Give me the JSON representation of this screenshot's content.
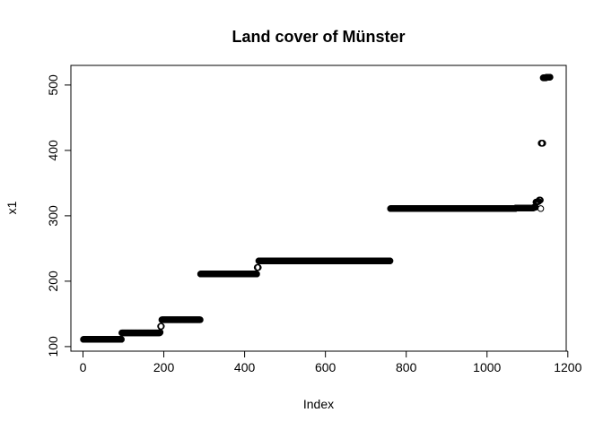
{
  "chart_data": {
    "type": "scatter",
    "title": "Land cover of Münster",
    "xlabel": "Index",
    "ylabel": "x1",
    "xlim": [
      -30,
      1196
    ],
    "ylim": [
      93,
      530
    ],
    "x_ticks": [
      0,
      200,
      400,
      600,
      800,
      1000,
      1200
    ],
    "y_ticks": [
      100,
      200,
      300,
      400,
      500
    ],
    "grid": false,
    "legend": "none",
    "point_color": "#000000",
    "segments": [
      {
        "value": 111,
        "x_from": 1,
        "x_to": 95
      },
      {
        "value": 121,
        "x_from": 96,
        "x_to": 190
      },
      {
        "value": 122,
        "x_from": 191,
        "x_to": 191
      },
      {
        "value": 131,
        "x_from": 192,
        "x_to": 194
      },
      {
        "value": 141,
        "x_from": 195,
        "x_to": 290
      },
      {
        "value": 211,
        "x_from": 291,
        "x_to": 430
      },
      {
        "value": 221,
        "x_from": 431,
        "x_to": 434
      },
      {
        "value": 231,
        "x_from": 435,
        "x_to": 760
      },
      {
        "value": 311,
        "x_from": 761,
        "x_to": 1070
      },
      {
        "value": 312,
        "x_from": 1071,
        "x_to": 1115
      },
      {
        "value": 313,
        "x_from": 1116,
        "x_to": 1120
      },
      {
        "value": 321,
        "x_from": 1121,
        "x_to": 1125
      },
      {
        "value": 322,
        "x_from": 1126,
        "x_to": 1128
      },
      {
        "value": 324,
        "x_from": 1129,
        "x_to": 1132
      },
      {
        "value": 311,
        "x_from": 1133,
        "x_to": 1133
      },
      {
        "value": 411,
        "x_from": 1134,
        "x_to": 1138
      },
      {
        "value": 511,
        "x_from": 1139,
        "x_to": 1146
      },
      {
        "value": 512,
        "x_from": 1147,
        "x_to": 1156
      }
    ]
  }
}
